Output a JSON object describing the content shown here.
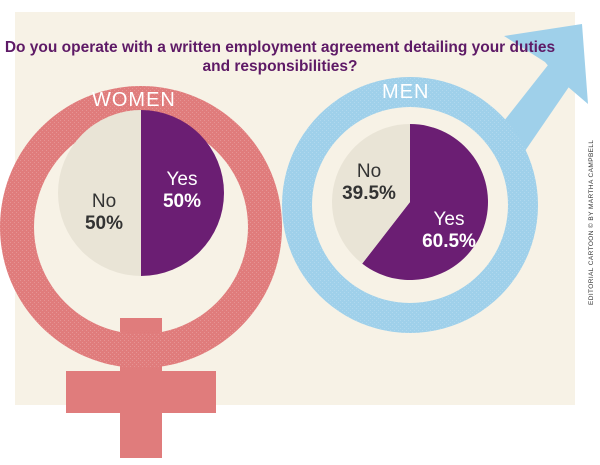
{
  "chart_data": {
    "type": "pie",
    "title": "Do you operate with a written employment agreement detailing your duties and responsibilities?",
    "charts": [
      {
        "name": "WOMEN",
        "slices": [
          {
            "label": "Yes",
            "value": 50,
            "value_label": "50%"
          },
          {
            "label": "No",
            "value": 50,
            "value_label": "50%"
          }
        ]
      },
      {
        "name": "MEN",
        "slices": [
          {
            "label": "Yes",
            "value": 60.5,
            "value_label": "60.5%"
          },
          {
            "label": "No",
            "value": 39.5,
            "value_label": "39.5%"
          }
        ]
      }
    ]
  },
  "credit": "EDITORIAL CARTOON © BY MARTHA CAMPBELL",
  "colors": {
    "background": "#f7f2e6",
    "women_symbol": "#e07c7c",
    "men_symbol": "#9fd0ea",
    "yes": "#6b1e73",
    "no": "#e9e4d6",
    "title": "#5e1a66",
    "ring_text": "#ffffff",
    "label_dark": "#333333"
  }
}
